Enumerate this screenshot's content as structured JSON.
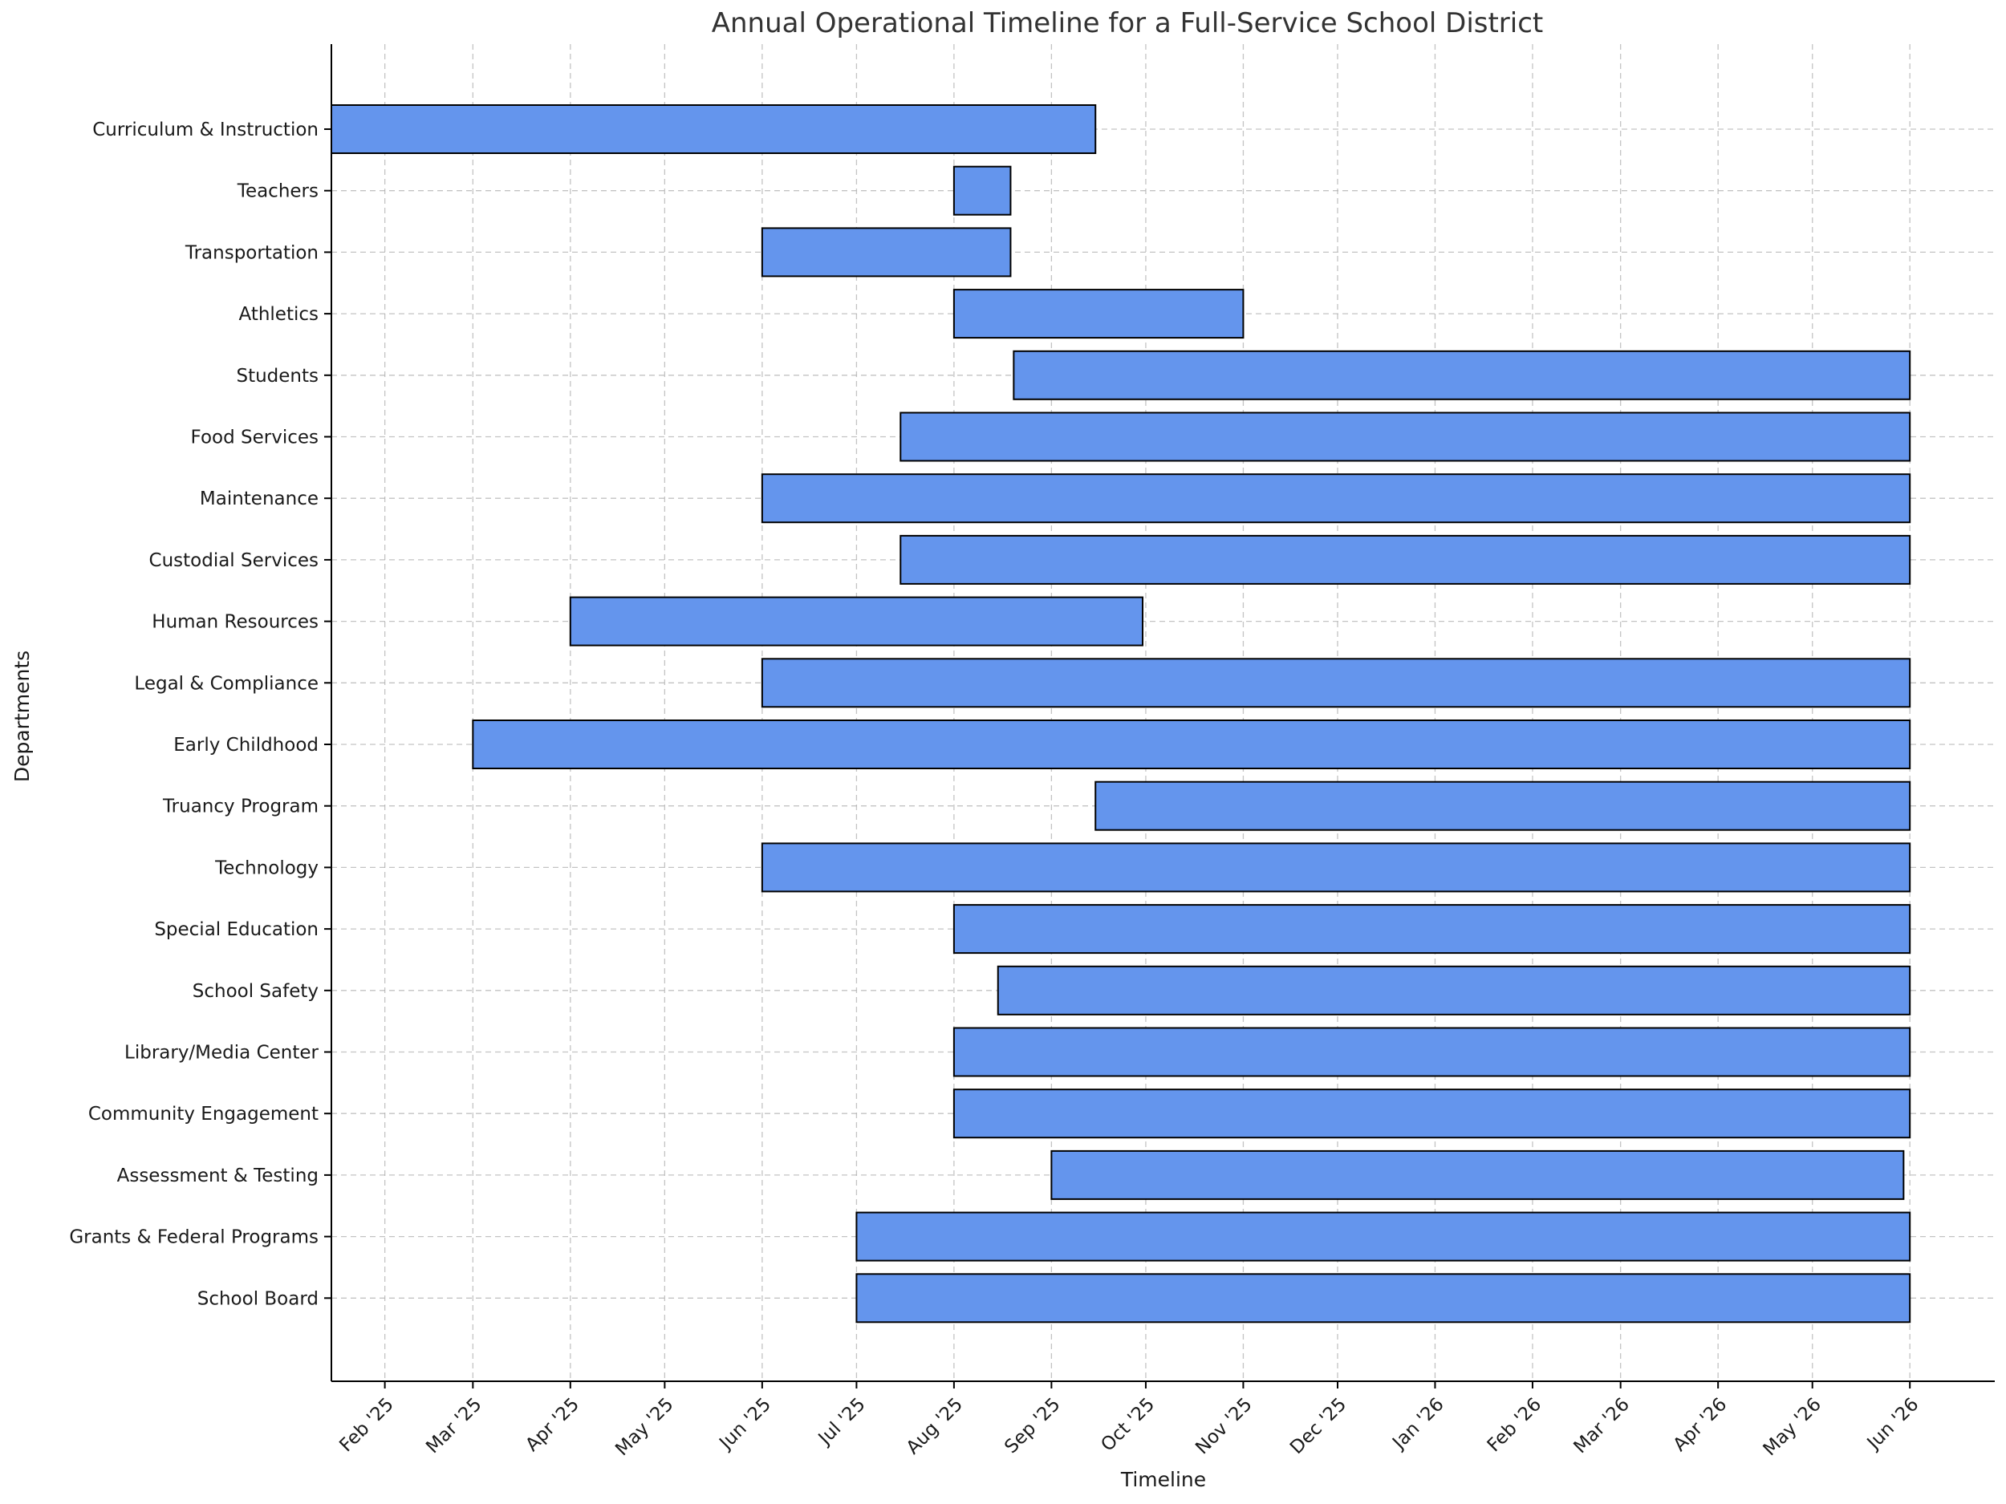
{
  "chart_data": {
    "type": "gantt",
    "title": "Annual Operational Timeline for a Full-Service School District",
    "xlabel": "Timeline",
    "ylabel": "Departments",
    "xlim": [
      "2025-01-15",
      "2026-06-28"
    ],
    "grid": true,
    "bar_color": "#6495ED",
    "bar_edge_color": "#000000",
    "x_ticks": [
      {
        "date": "2025-02-01",
        "label": "Feb '25"
      },
      {
        "date": "2025-03-01",
        "label": "Mar '25"
      },
      {
        "date": "2025-04-01",
        "label": "Apr '25"
      },
      {
        "date": "2025-05-01",
        "label": "May '25"
      },
      {
        "date": "2025-06-01",
        "label": "Jun '25"
      },
      {
        "date": "2025-07-01",
        "label": "Jul '25"
      },
      {
        "date": "2025-08-01",
        "label": "Aug '25"
      },
      {
        "date": "2025-09-01",
        "label": "Sep '25"
      },
      {
        "date": "2025-10-01",
        "label": "Oct '25"
      },
      {
        "date": "2025-11-01",
        "label": "Nov '25"
      },
      {
        "date": "2025-12-01",
        "label": "Dec '25"
      },
      {
        "date": "2026-01-01",
        "label": "Jan '26"
      },
      {
        "date": "2026-02-01",
        "label": "Feb '26"
      },
      {
        "date": "2026-03-01",
        "label": "Mar '26"
      },
      {
        "date": "2026-04-01",
        "label": "Apr '26"
      },
      {
        "date": "2026-05-01",
        "label": "May '26"
      },
      {
        "date": "2026-06-01",
        "label": "Jun '26"
      }
    ],
    "tasks": [
      {
        "name": "Curriculum & Instruction",
        "start": "2025-01-15",
        "end": "2025-09-15"
      },
      {
        "name": "Teachers",
        "start": "2025-08-01",
        "end": "2025-08-19"
      },
      {
        "name": "Transportation",
        "start": "2025-06-01",
        "end": "2025-08-19"
      },
      {
        "name": "Athletics",
        "start": "2025-08-01",
        "end": "2025-11-01"
      },
      {
        "name": "Students",
        "start": "2025-08-20",
        "end": "2026-06-01"
      },
      {
        "name": "Food Services",
        "start": "2025-07-15",
        "end": "2026-06-01"
      },
      {
        "name": "Maintenance",
        "start": "2025-06-01",
        "end": "2026-06-01"
      },
      {
        "name": "Custodial Services",
        "start": "2025-07-15",
        "end": "2026-06-01"
      },
      {
        "name": "Human Resources",
        "start": "2025-04-01",
        "end": "2025-09-30"
      },
      {
        "name": "Legal & Compliance",
        "start": "2025-06-01",
        "end": "2026-06-01"
      },
      {
        "name": "Early Childhood",
        "start": "2025-03-01",
        "end": "2026-06-01"
      },
      {
        "name": "Truancy Program",
        "start": "2025-09-15",
        "end": "2026-06-01"
      },
      {
        "name": "Technology",
        "start": "2025-06-01",
        "end": "2026-06-01"
      },
      {
        "name": "Special Education",
        "start": "2025-08-01",
        "end": "2026-06-01"
      },
      {
        "name": "School Safety",
        "start": "2025-08-15",
        "end": "2026-06-01"
      },
      {
        "name": "Library/Media Center",
        "start": "2025-08-01",
        "end": "2026-06-01"
      },
      {
        "name": "Community Engagement",
        "start": "2025-08-01",
        "end": "2026-06-01"
      },
      {
        "name": "Assessment & Testing",
        "start": "2025-09-01",
        "end": "2026-05-30"
      },
      {
        "name": "Grants & Federal Programs",
        "start": "2025-07-01",
        "end": "2026-06-01"
      },
      {
        "name": "School Board",
        "start": "2025-07-01",
        "end": "2026-06-01"
      }
    ]
  }
}
